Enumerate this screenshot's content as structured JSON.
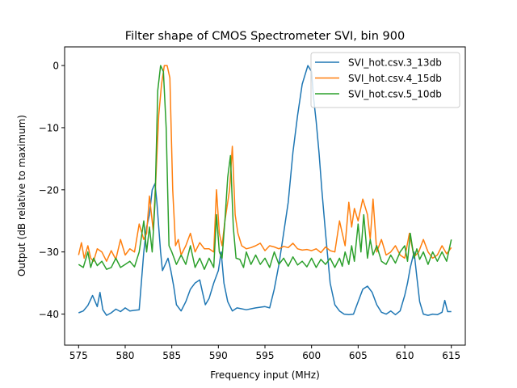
{
  "chart_data": {
    "type": "line",
    "title": "Filter shape of CMOS Spectrometer SVI, bin 900",
    "xlabel": "Frequency input (MHz)",
    "ylabel": "Output (dB relative to maximum)",
    "xlim": [
      573.5,
      616.5
    ],
    "ylim": [
      -45,
      3
    ],
    "xticks": [
      575,
      580,
      585,
      590,
      595,
      600,
      605,
      610,
      615
    ],
    "yticks": [
      0,
      -10,
      -20,
      -30,
      -40
    ],
    "xtick_labels": [
      "575",
      "580",
      "585",
      "590",
      "595",
      "600",
      "605",
      "610",
      "615"
    ],
    "ytick_labels": [
      "0",
      "−10",
      "−20",
      "−30",
      "−40"
    ],
    "grid": false,
    "legend_position": "top-right",
    "series": [
      {
        "name": "SVI_hot.csv.3_13db",
        "color": "#1f77b4",
        "x": [
          575,
          575.5,
          576,
          576.5,
          577,
          577.3,
          577.6,
          578,
          578.5,
          579,
          579.5,
          580,
          580.5,
          581,
          581.5,
          582,
          582.3,
          582.6,
          582.9,
          583.2,
          583.4,
          583.6,
          583.8,
          584,
          584.3,
          584.6,
          584.9,
          585.2,
          585.5,
          586,
          586.5,
          587,
          587.5,
          588,
          588.3,
          588.6,
          589,
          589.5,
          590,
          590.3,
          590.6,
          591,
          591.5,
          592,
          593,
          594,
          595,
          595.5,
          596,
          596.5,
          597,
          597.5,
          598,
          598.5,
          599,
          599.3,
          599.6,
          599.8,
          600,
          600.2,
          600.5,
          600.8,
          601.1,
          601.5,
          602,
          602.5,
          603,
          603.5,
          604,
          604.5,
          605,
          605.5,
          606,
          606.5,
          607,
          607.5,
          608,
          608.5,
          609,
          609.5,
          610,
          610.3,
          610.6,
          611,
          611.3,
          611.6,
          612,
          612.5,
          613,
          613.5,
          614,
          614.3,
          614.6,
          615
        ],
        "values": [
          -39.8,
          -39.5,
          -38.6,
          -37,
          -38.8,
          -36.5,
          -39.3,
          -40.2,
          -39.8,
          -39.2,
          -39.6,
          -39,
          -39.5,
          -39.4,
          -39.3,
          -30,
          -26,
          -24,
          -20,
          -19,
          -22,
          -26,
          -30,
          -33,
          -32,
          -31,
          -33,
          -35.5,
          -38.5,
          -39.5,
          -38,
          -36,
          -35,
          -34.5,
          -36.5,
          -38.5,
          -37.5,
          -35,
          -33,
          -30,
          -35,
          -38,
          -39.5,
          -39,
          -39.3,
          -39,
          -38.8,
          -39,
          -36,
          -32,
          -27,
          -22,
          -14,
          -8,
          -3,
          -1.5,
          0,
          -0.5,
          -1,
          -5,
          -9,
          -14,
          -20,
          -27,
          -35,
          -38.5,
          -39.5,
          -40,
          -40.1,
          -40,
          -38,
          -36,
          -35.5,
          -36.5,
          -38.5,
          -39.7,
          -40,
          -39.5,
          -40.1,
          -39.5,
          -37,
          -35,
          -32.5,
          -30,
          -34,
          -38,
          -40,
          -40.2,
          -40,
          -40.1,
          -39.7,
          -37.8,
          -39.6,
          -39.6
        ]
      },
      {
        "name": "SVI_hot.csv.4_15db",
        "color": "#ff7f0e",
        "x": [
          575,
          575.3,
          575.6,
          576,
          576.3,
          576.6,
          577,
          577.5,
          578,
          578.5,
          579,
          579.5,
          580,
          580.5,
          581,
          581.5,
          582,
          582.3,
          582.6,
          583,
          583.3,
          583.6,
          583.9,
          584.2,
          584.5,
          584.8,
          585.1,
          585.4,
          585.7,
          586,
          586.5,
          587,
          587.5,
          588,
          588.5,
          589,
          589.5,
          589.8,
          590.1,
          590.4,
          590.7,
          591,
          591.2,
          591.5,
          591.8,
          592.1,
          592.5,
          593,
          593.5,
          594,
          594.5,
          595,
          595.5,
          596,
          596.5,
          597,
          597.5,
          598,
          598.5,
          599,
          599.5,
          600,
          600.5,
          601,
          601.5,
          602,
          602.5,
          603,
          603.3,
          603.6,
          604,
          604.3,
          604.6,
          605,
          605.5,
          606,
          606.3,
          606.6,
          607,
          607.5,
          608,
          608.5,
          609,
          609.5,
          610,
          610.5,
          611,
          611.5,
          612,
          612.5,
          613,
          613.5,
          614,
          614.5,
          615
        ],
        "values": [
          -30.5,
          -28.5,
          -31,
          -29,
          -31,
          -31.5,
          -29.5,
          -30,
          -31.5,
          -29.8,
          -31.2,
          -28,
          -30.5,
          -29.5,
          -30,
          -25.5,
          -28,
          -27,
          -21,
          -26.5,
          -18,
          -8,
          -3,
          0,
          0,
          -2,
          -20,
          -29,
          -28,
          -30.5,
          -29,
          -27,
          -30,
          -28.5,
          -29.5,
          -29.5,
          -30,
          -20,
          -27,
          -29,
          -25,
          -22,
          -20,
          -13,
          -24,
          -27,
          -29,
          -29.5,
          -29.3,
          -29,
          -28.6,
          -29.8,
          -29,
          -29.2,
          -29.5,
          -29.1,
          -29.3,
          -28.6,
          -29.5,
          -29.7,
          -29.6,
          -29.8,
          -29.5,
          -30.1,
          -29.2,
          -29.8,
          -30,
          -25,
          -27,
          -29,
          -22,
          -26,
          -23,
          -25,
          -21.5,
          -24,
          -28,
          -21.5,
          -30,
          -28,
          -30.5,
          -30,
          -29,
          -30.5,
          -31,
          -27,
          -30.8,
          -30,
          -28,
          -30,
          -31,
          -30.5,
          -29,
          -30.3,
          -29.3
        ]
      },
      {
        "name": "SVI_hot.csv.5_10db",
        "color": "#2ca02c",
        "x": [
          575,
          575.5,
          576,
          576.3,
          576.6,
          577,
          577.5,
          578,
          578.5,
          579,
          579.5,
          580,
          580.5,
          581,
          581.5,
          582,
          582.3,
          582.6,
          582.9,
          583.2,
          583.5,
          583.8,
          584.1,
          584.4,
          584.7,
          585,
          585.5,
          586,
          586.5,
          587,
          587.5,
          588,
          588.5,
          589,
          589.5,
          589.8,
          590.1,
          590.4,
          590.7,
          591,
          591.3,
          591.6,
          591.9,
          592.3,
          592.7,
          593,
          593.5,
          594,
          594.5,
          595,
          595.5,
          596,
          596.5,
          597,
          597.5,
          598,
          598.5,
          599,
          599.5,
          600,
          600.5,
          601,
          601.5,
          602,
          602.5,
          603,
          603.3,
          603.6,
          604,
          604.3,
          604.6,
          605,
          605.3,
          605.6,
          606,
          606.3,
          606.6,
          607,
          607.5,
          608,
          608.5,
          609,
          609.5,
          610,
          610.3,
          610.6,
          611,
          611.3,
          611.6,
          612,
          612.5,
          613,
          613.5,
          614,
          614.5,
          615
        ],
        "values": [
          -32,
          -32.5,
          -30,
          -32.5,
          -31,
          -32.2,
          -31.5,
          -32.8,
          -32.5,
          -31,
          -32.5,
          -32,
          -31.5,
          -32.4,
          -30,
          -25,
          -30,
          -26,
          -30,
          -22,
          -4,
          0,
          -1,
          -10,
          -29,
          -30,
          -32,
          -30.5,
          -32,
          -29,
          -32.5,
          -31,
          -32.8,
          -31,
          -32.5,
          -24,
          -30,
          -31,
          -25,
          -18,
          -14.5,
          -26,
          -31,
          -31.2,
          -32.5,
          -30,
          -32,
          -30.5,
          -32,
          -31,
          -32.5,
          -30,
          -32,
          -31,
          -32.3,
          -30.8,
          -32.1,
          -31.5,
          -32.4,
          -31,
          -32.5,
          -31.2,
          -32,
          -31,
          -32.5,
          -31,
          -32.3,
          -30,
          -32,
          -29,
          -31.5,
          -25.5,
          -30,
          -24,
          -31,
          -28,
          -30.5,
          -29,
          -31.5,
          -32,
          -30.5,
          -31.8,
          -30,
          -29,
          -31.5,
          -27,
          -31,
          -29.5,
          -31.2,
          -30,
          -32,
          -30,
          -31.5,
          -30,
          -31.5,
          -28
        ]
      }
    ]
  }
}
